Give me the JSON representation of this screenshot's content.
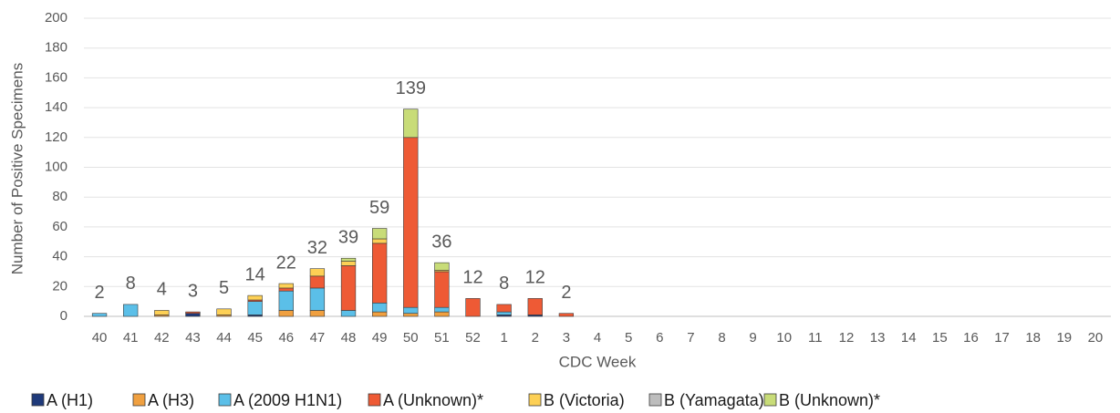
{
  "chart_data": {
    "type": "stacked_bar",
    "y_label": "Number of Positive Specimens",
    "x_label": "CDC Week",
    "categories": [
      "40",
      "41",
      "42",
      "43",
      "44",
      "45",
      "46",
      "47",
      "48",
      "49",
      "50",
      "51",
      "52",
      "1",
      "2",
      "3",
      "4",
      "5",
      "6",
      "7",
      "8",
      "9",
      "10",
      "11",
      "12",
      "13",
      "14",
      "15",
      "16",
      "17",
      "18",
      "19",
      "20"
    ],
    "series": [
      {
        "name": "A (H1)",
        "color": "#1f3a7a",
        "values": [
          0,
          0,
          0,
          2,
          0,
          1,
          0,
          0,
          0,
          0,
          0,
          0,
          0,
          1,
          1,
          0,
          0,
          0,
          0,
          0,
          0,
          0,
          0,
          0,
          0,
          0,
          0,
          0,
          0,
          0,
          0,
          0,
          0
        ]
      },
      {
        "name": "A (H3)",
        "color": "#f0a040",
        "values": [
          0,
          0,
          1,
          0,
          1,
          0,
          4,
          4,
          0,
          3,
          2,
          3,
          0,
          0,
          0,
          0,
          0,
          0,
          0,
          0,
          0,
          0,
          0,
          0,
          0,
          0,
          0,
          0,
          0,
          0,
          0,
          0,
          0
        ]
      },
      {
        "name": "A (2009 H1N1)",
        "color": "#5bbfe8",
        "values": [
          2,
          8,
          0,
          0,
          0,
          9,
          13,
          15,
          4,
          6,
          4,
          3,
          0,
          2,
          0,
          0,
          0,
          0,
          0,
          0,
          0,
          0,
          0,
          0,
          0,
          0,
          0,
          0,
          0,
          0,
          0,
          0,
          0
        ]
      },
      {
        "name": "A (Unknown)*",
        "color": "#ee5a35",
        "values": [
          0,
          0,
          0,
          1,
          0,
          1,
          2,
          8,
          30,
          40,
          114,
          24,
          12,
          5,
          11,
          2,
          0,
          0,
          0,
          0,
          0,
          0,
          0,
          0,
          0,
          0,
          0,
          0,
          0,
          0,
          0,
          0,
          0
        ]
      },
      {
        "name": "B (Victoria)",
        "color": "#fdd055",
        "values": [
          0,
          0,
          3,
          0,
          4,
          3,
          3,
          5,
          3,
          3,
          0,
          1,
          0,
          0,
          0,
          0,
          0,
          0,
          0,
          0,
          0,
          0,
          0,
          0,
          0,
          0,
          0,
          0,
          0,
          0,
          0,
          0,
          0
        ]
      },
      {
        "name": "B (Yamagata)",
        "color": "#bdbdbd",
        "values": [
          0,
          0,
          0,
          0,
          0,
          0,
          0,
          0,
          0,
          0,
          0,
          0,
          0,
          0,
          0,
          0,
          0,
          0,
          0,
          0,
          0,
          0,
          0,
          0,
          0,
          0,
          0,
          0,
          0,
          0,
          0,
          0,
          0
        ]
      },
      {
        "name": "B (Unknown)*",
        "color": "#c8dc78",
        "values": [
          0,
          0,
          0,
          0,
          0,
          0,
          0,
          0,
          2,
          7,
          19,
          5,
          0,
          0,
          0,
          0,
          0,
          0,
          0,
          0,
          0,
          0,
          0,
          0,
          0,
          0,
          0,
          0,
          0,
          0,
          0,
          0,
          0
        ]
      }
    ],
    "totals": [
      2,
      8,
      4,
      3,
      5,
      14,
      22,
      32,
      39,
      59,
      139,
      36,
      12,
      8,
      12,
      2,
      null,
      null,
      null,
      null,
      null,
      null,
      null,
      null,
      null,
      null,
      null,
      null,
      null,
      null,
      null,
      null,
      null
    ],
    "ylim": [
      0,
      200
    ],
    "yticks": [
      0,
      20,
      40,
      60,
      80,
      100,
      120,
      140,
      160,
      180,
      200
    ],
    "grid": true
  }
}
